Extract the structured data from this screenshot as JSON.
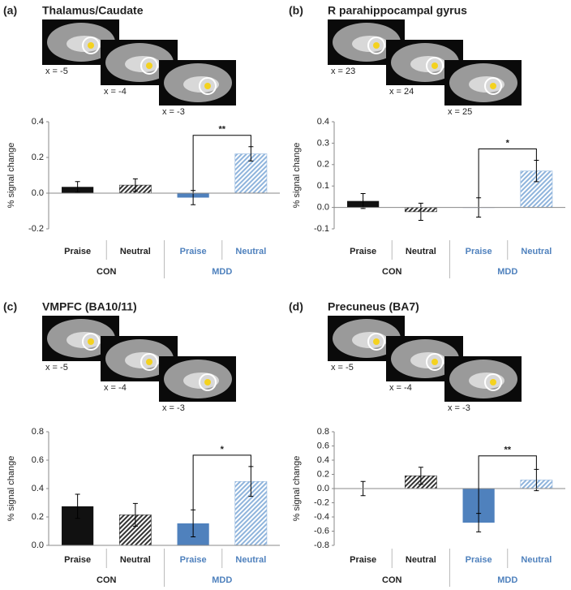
{
  "chart_data": [
    {
      "type": "bar",
      "panel": "(a)",
      "title": "Thalamus/Caudate",
      "slices": [
        "x = -5",
        "x = -4",
        "x = -3"
      ],
      "ylabel": "% signal change",
      "categories": [
        "Praise",
        "Neutral",
        "Praise",
        "Neutral"
      ],
      "groups": [
        "CON",
        "MDD"
      ],
      "values": [
        0.035,
        0.045,
        -0.025,
        0.22
      ],
      "errors": [
        0.03,
        0.035,
        0.04,
        0.04
      ],
      "colors": [
        "#111111",
        "#333333",
        "#4f81bd",
        "#8fb4dc"
      ],
      "hatch": [
        false,
        true,
        false,
        true
      ],
      "ylim": [
        -0.2,
        0.4
      ],
      "yticks": [
        -0.2,
        {
          "value": 0,
          "label": "0.0"
        },
        0.2,
        0.4
      ],
      "significance": "**"
    },
    {
      "type": "bar",
      "panel": "(b)",
      "title": "R parahippocampal gyrus",
      "slices": [
        "x = 23",
        "x = 24",
        "x = 25"
      ],
      "ylabel": "% signal change",
      "categories": [
        "Praise",
        "Neutral",
        "Praise",
        "Neutral"
      ],
      "groups": [
        "CON",
        "MDD"
      ],
      "values": [
        0.03,
        -0.02,
        0.0,
        0.17
      ],
      "errors": [
        0.035,
        0.04,
        0.045,
        0.05
      ],
      "colors": [
        "#111111",
        "#333333",
        "#4f81bd",
        "#8fb4dc"
      ],
      "hatch": [
        false,
        true,
        false,
        true
      ],
      "ylim": [
        -0.1,
        0.4
      ],
      "yticks": [
        -0.1,
        {
          "value": 0,
          "label": "0.0"
        },
        0.1,
        0.2,
        0.3,
        0.4
      ],
      "significance": "*"
    },
    {
      "type": "bar",
      "panel": "(c)",
      "title": "VMPFC (BA10/11)",
      "slices": [
        "x = -5",
        "x = -4",
        "x = -3"
      ],
      "ylabel": "% signal change",
      "categories": [
        "Praise",
        "Neutral",
        "Praise",
        "Neutral"
      ],
      "groups": [
        "CON",
        "MDD"
      ],
      "values": [
        0.275,
        0.215,
        0.155,
        0.45
      ],
      "errors": [
        0.085,
        0.08,
        0.095,
        0.105
      ],
      "colors": [
        "#111111",
        "#333333",
        "#4f81bd",
        "#8fb4dc"
      ],
      "hatch": [
        false,
        true,
        false,
        true
      ],
      "ylim": [
        0,
        0.8
      ],
      "yticks": [
        {
          "value": 0,
          "label": "0.0"
        },
        0.2,
        0.4,
        0.6,
        0.8
      ],
      "significance": "*"
    },
    {
      "type": "bar",
      "panel": "(d)",
      "title": "Precuneus (BA7)",
      "slices": [
        "x = -5",
        "x = -4",
        "x = -3"
      ],
      "ylabel": "% signal change",
      "categories": [
        "Praise",
        "Neutral",
        "Praise",
        "Neutral"
      ],
      "groups": [
        "CON",
        "MDD"
      ],
      "values": [
        0.0,
        0.18,
        -0.48,
        0.12
      ],
      "errors": [
        0.1,
        0.12,
        0.13,
        0.15
      ],
      "colors": [
        "#111111",
        "#333333",
        "#4f81bd",
        "#8fb4dc"
      ],
      "hatch": [
        false,
        true,
        false,
        true
      ],
      "ylim": [
        -0.8,
        0.8
      ],
      "yticks": [
        -0.8,
        -0.6,
        -0.4,
        -0.2,
        {
          "value": 0,
          "label": "0.0"
        },
        0.2,
        0.4,
        0.6,
        0.8
      ],
      "significance": "**"
    }
  ]
}
